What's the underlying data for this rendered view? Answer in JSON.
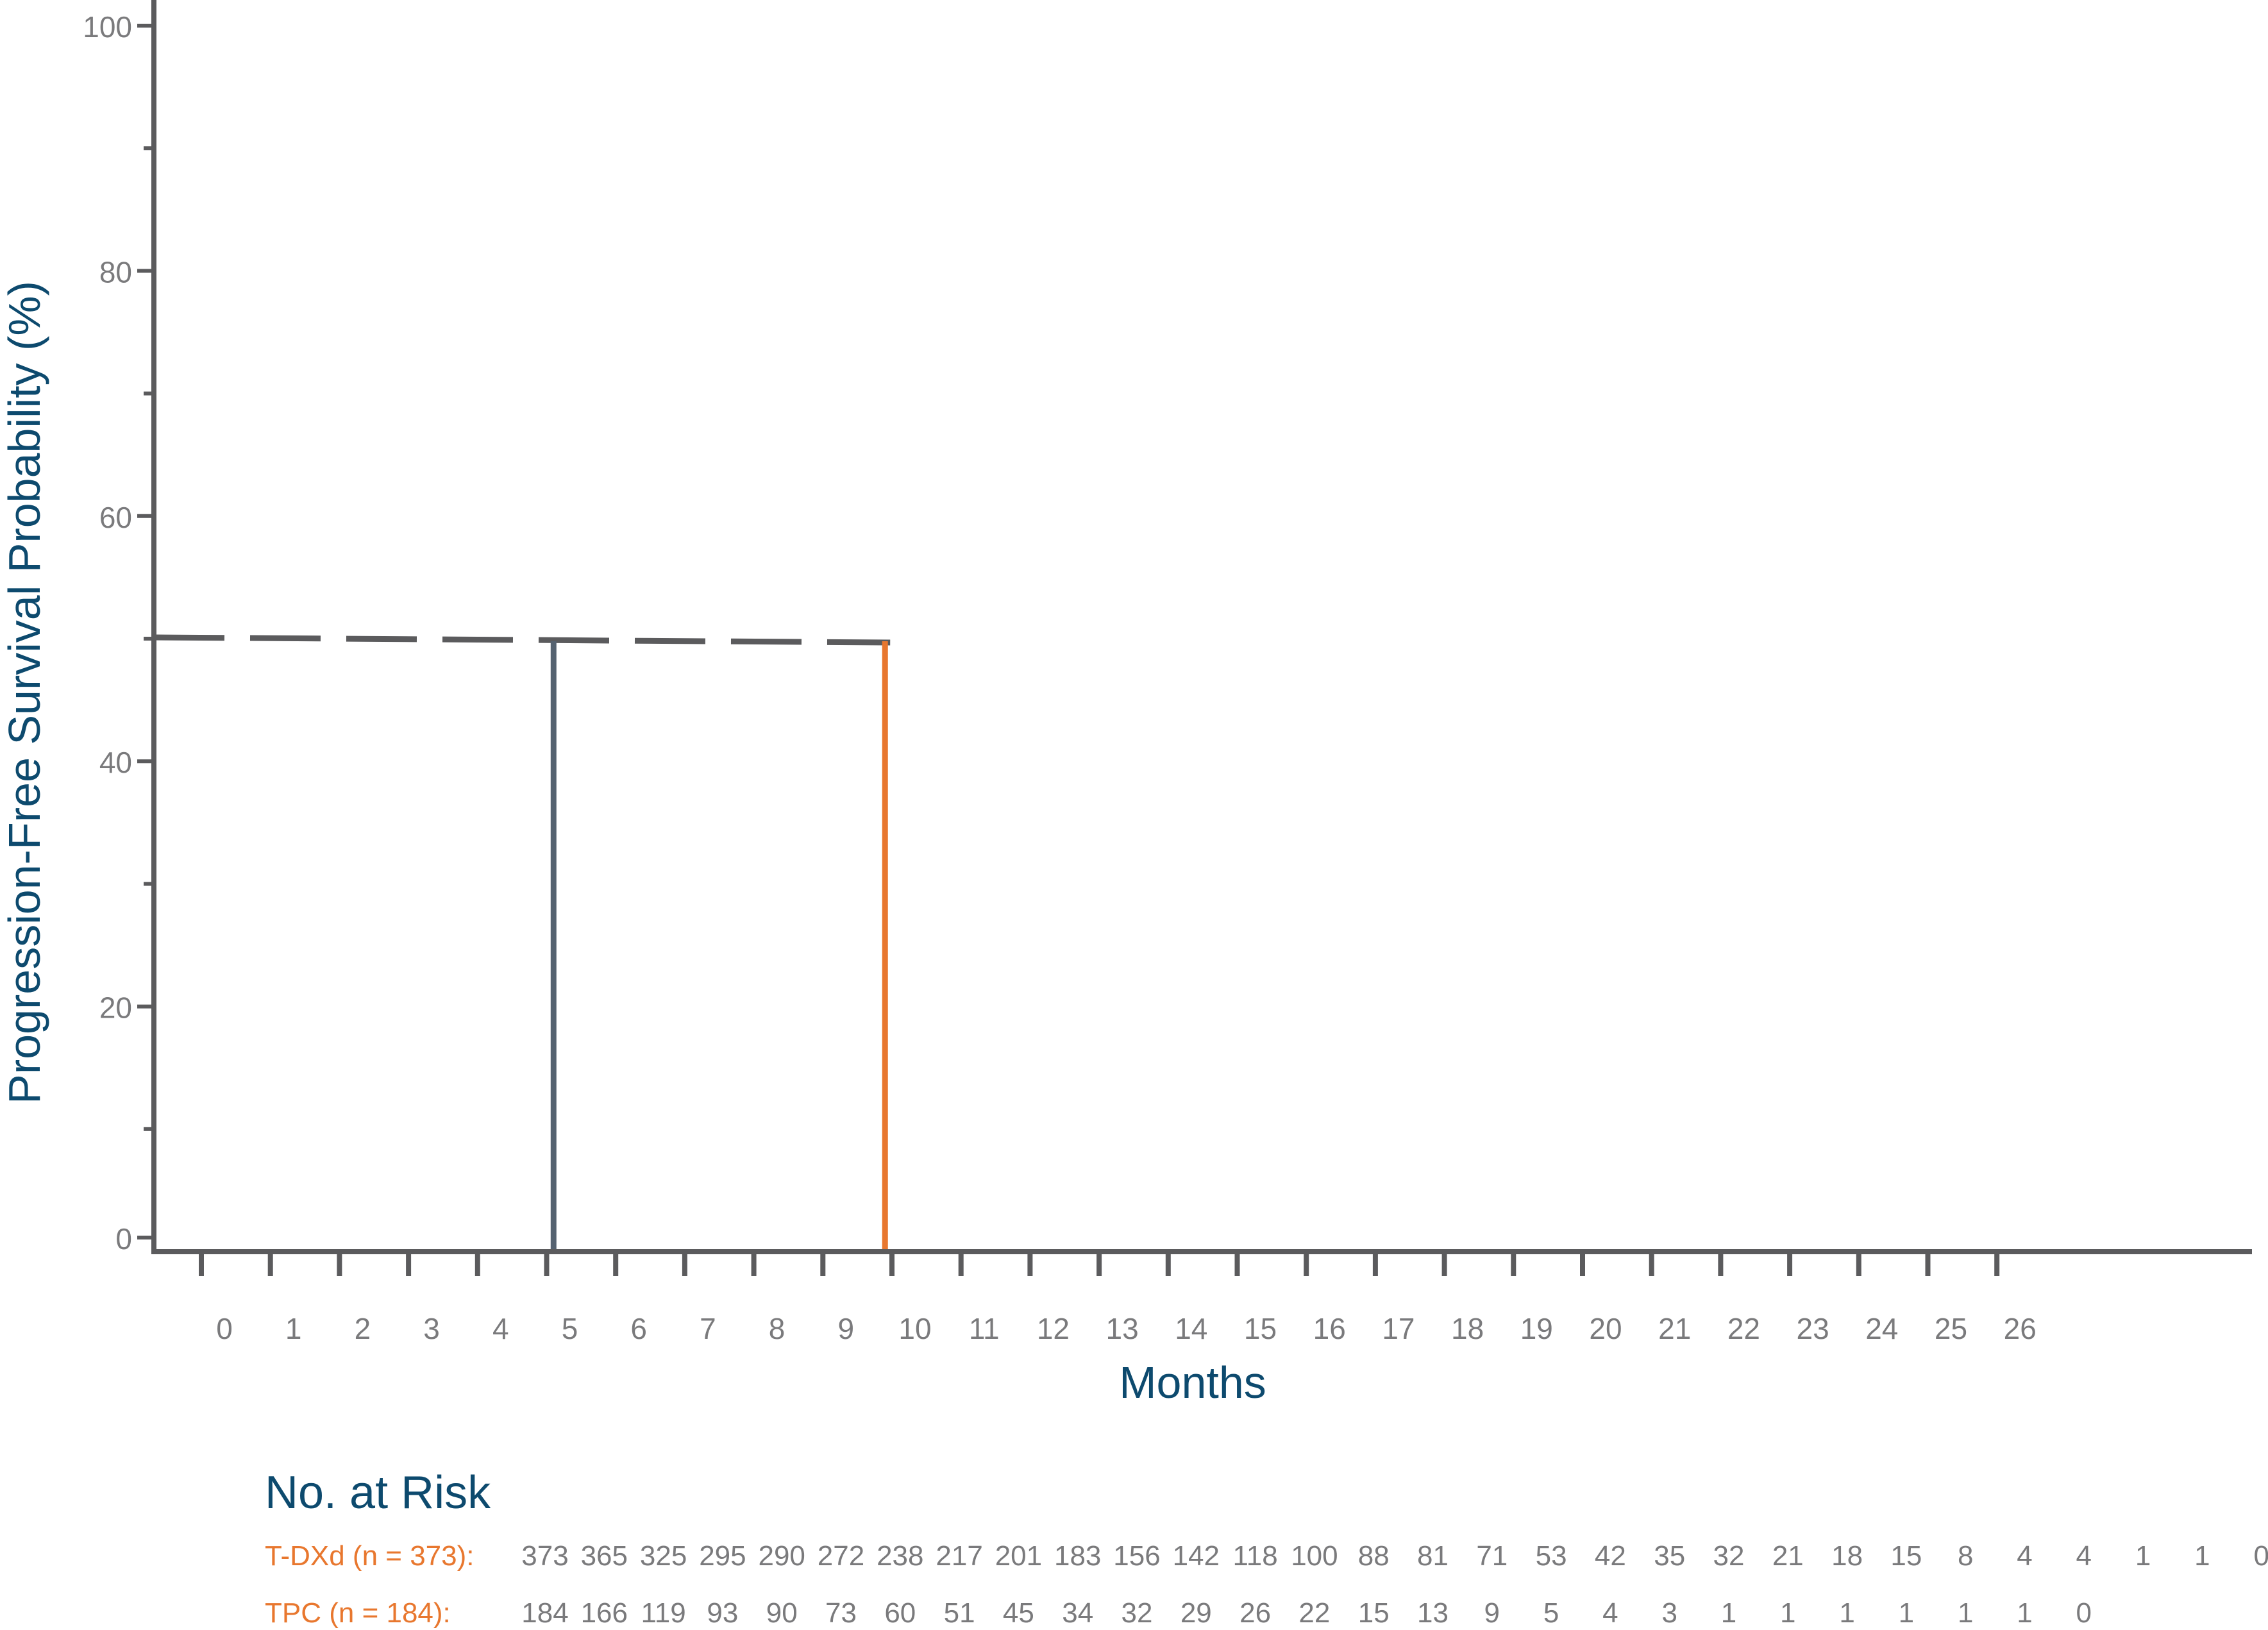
{
  "chart_data": {
    "type": "line",
    "title": "",
    "xlabel": "Months",
    "ylabel": "Progression-Free Survival Probability (%)",
    "xlim": [
      -1,
      29
    ],
    "ylim": [
      0,
      100
    ],
    "x_ticks": [
      0,
      1,
      2,
      3,
      4,
      5,
      6,
      7,
      8,
      9,
      10,
      11,
      12,
      13,
      14,
      15,
      16,
      17,
      18,
      19,
      20,
      21,
      22,
      23,
      24,
      25,
      26
    ],
    "y_ticks": [
      0,
      20,
      40,
      60,
      80,
      100
    ],
    "y_minor_ticks": [
      10,
      30,
      50,
      70,
      90
    ],
    "series": [],
    "reference_lines": [
      {
        "kind": "median-horizontal",
        "style": "dashed",
        "color": "#5b5b5d",
        "y": 50,
        "x_from": -1,
        "x_to": 9.9
      },
      {
        "kind": "median-vertical",
        "style": "solid",
        "color": "#556270",
        "x": 5.1,
        "y_from": 0,
        "y_to": 50
      },
      {
        "kind": "median-vertical",
        "style": "solid",
        "color": "#e8772e",
        "x": 9.9,
        "y_from": 0,
        "y_to": 50
      }
    ],
    "grid": false,
    "colors": {
      "axis": "#5b5b5d",
      "tick_text": "#7a7a7c",
      "title_text": "#0d4a6e",
      "t_dxd": "#e8772e",
      "tpc": "#556270"
    }
  },
  "risk_table": {
    "title": "No. at Risk",
    "rows": [
      {
        "label": "T-DXd (n = 373):",
        "values": [
          "373",
          "365",
          "325",
          "295",
          "290",
          "272",
          "238",
          "217",
          "201",
          "183",
          "156",
          "142",
          "118",
          "100",
          "88",
          "81",
          "71",
          "53",
          "42",
          "35",
          "32",
          "21",
          "18",
          "15",
          "8",
          "4",
          "4",
          "1",
          "1",
          "0"
        ]
      },
      {
        "label": "TPC (n = 184):",
        "values": [
          "184",
          "166",
          "119",
          "93",
          "90",
          "73",
          "60",
          "51",
          "45",
          "34",
          "32",
          "29",
          "26",
          "22",
          "15",
          "13",
          "9",
          "5",
          "4",
          "3",
          "1",
          "1",
          "1",
          "1",
          "1",
          "1",
          "0"
        ]
      }
    ]
  }
}
